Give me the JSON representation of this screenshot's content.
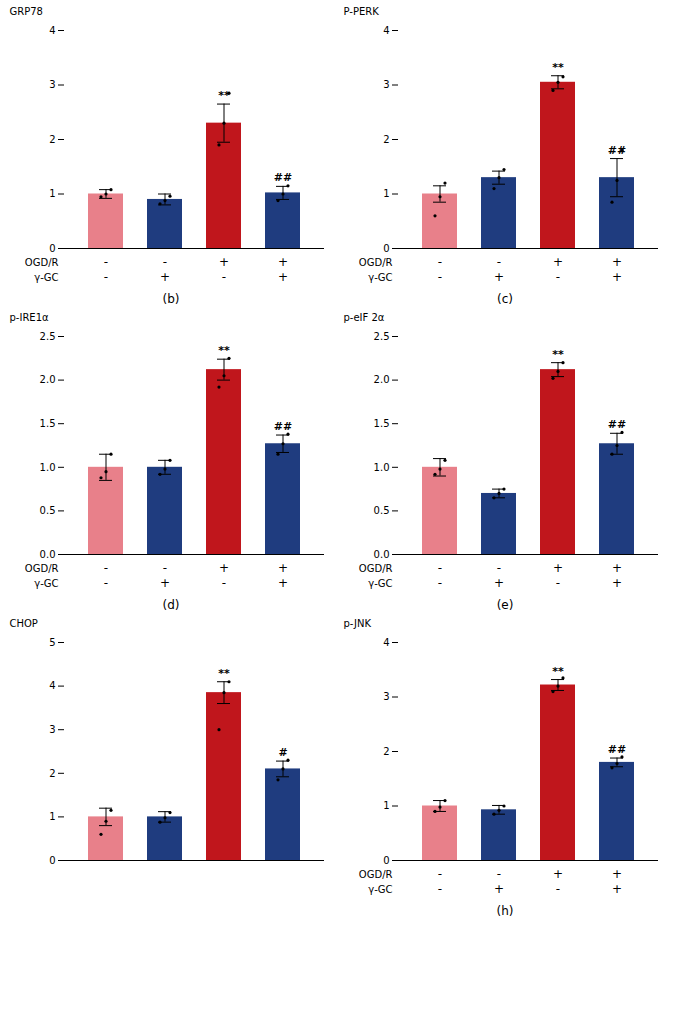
{
  "chart_data": [
    {
      "type": "bar",
      "title": "(b)",
      "ylabel": "GRP78",
      "categories": [
        null,
        null,
        null,
        null
      ],
      "category_rows": [
        {
          "label": "OGD/R",
          "values": [
            "-",
            "-",
            "+",
            "+"
          ]
        },
        {
          "label": "γ-GC",
          "values": [
            "-",
            "+",
            "-",
            "+"
          ]
        }
      ],
      "values": [
        1.0,
        0.9,
        2.3,
        1.02
      ],
      "errors": [
        0.08,
        0.1,
        0.35,
        0.12
      ],
      "points": [
        [
          0.95,
          1.0,
          1.08
        ],
        [
          0.82,
          0.88,
          0.96
        ],
        [
          1.9,
          2.3,
          2.85
        ],
        [
          0.88,
          1.0,
          1.15
        ]
      ],
      "significance_labels": [
        null,
        null,
        "**",
        "##"
      ],
      "colors": [
        "#E8808A",
        "#1F3C7F",
        "#C0161C",
        "#1F3C7F"
      ],
      "ylim": [
        0,
        4
      ],
      "yticks": [
        0,
        1,
        2,
        3,
        4
      ]
    },
    {
      "type": "bar",
      "title": "(c)",
      "ylabel": "P-PERK",
      "categories": [
        null,
        null,
        null,
        null
      ],
      "category_rows": [
        {
          "label": "OGD/R",
          "values": [
            "-",
            "-",
            "+",
            "+"
          ]
        },
        {
          "label": "γ-GC",
          "values": [
            "-",
            "+",
            "-",
            "+"
          ]
        }
      ],
      "values": [
        1.0,
        1.3,
        3.05,
        1.3
      ],
      "errors": [
        0.15,
        0.12,
        0.12,
        0.35
      ],
      "points": [
        [
          0.6,
          0.95,
          1.2
        ],
        [
          1.1,
          1.3,
          1.45
        ],
        [
          2.9,
          3.05,
          3.15
        ],
        [
          0.85,
          1.25,
          1.8
        ]
      ],
      "significance_labels": [
        null,
        null,
        "**",
        "##"
      ],
      "colors": [
        "#E8808A",
        "#1F3C7F",
        "#C0161C",
        "#1F3C7F"
      ],
      "ylim": [
        0,
        4
      ],
      "yticks": [
        0,
        1,
        2,
        3,
        4
      ]
    },
    {
      "type": "bar",
      "title": "(d)",
      "ylabel": "p-IRE1α",
      "categories": [
        null,
        null,
        null,
        null
      ],
      "category_rows": [
        {
          "label": "OGD/R",
          "values": [
            "-",
            "-",
            "+",
            "+"
          ]
        },
        {
          "label": "γ-GC",
          "values": [
            "-",
            "+",
            "-",
            "+"
          ]
        }
      ],
      "values": [
        1.0,
        1.0,
        2.12,
        1.27
      ],
      "errors": [
        0.15,
        0.08,
        0.12,
        0.1
      ],
      "points": [
        [
          0.88,
          0.95,
          1.15
        ],
        [
          0.92,
          0.98,
          1.08
        ],
        [
          1.92,
          2.05,
          2.25
        ],
        [
          1.15,
          1.27,
          1.38
        ]
      ],
      "significance_labels": [
        null,
        null,
        "**",
        "##"
      ],
      "colors": [
        "#E8808A",
        "#1F3C7F",
        "#C0161C",
        "#1F3C7F"
      ],
      "ylim": [
        0,
        2.5
      ],
      "yticks": [
        {
          "value": 0,
          "label": "0.0"
        },
        0.5,
        {
          "value": 1.0,
          "label": "1.0"
        },
        1.5,
        {
          "value": 2.0,
          "label": "2.0"
        },
        2.5
      ]
    },
    {
      "type": "bar",
      "title": "(e)",
      "ylabel": "p-eIF 2α",
      "categories": [
        null,
        null,
        null,
        null
      ],
      "category_rows": [
        {
          "label": "OGD/R",
          "values": [
            "-",
            "-",
            "+",
            "+"
          ]
        },
        {
          "label": "γ-GC",
          "values": [
            "-",
            "+",
            "-",
            "+"
          ]
        }
      ],
      "values": [
        1.0,
        0.7,
        2.12,
        1.27
      ],
      "errors": [
        0.1,
        0.05,
        0.08,
        0.12
      ],
      "points": [
        [
          0.92,
          0.98,
          1.08
        ],
        [
          0.65,
          0.7,
          0.75
        ],
        [
          2.02,
          2.1,
          2.2
        ],
        [
          1.15,
          1.25,
          1.4
        ]
      ],
      "significance_labels": [
        null,
        null,
        "**",
        "##"
      ],
      "colors": [
        "#E8808A",
        "#1F3C7F",
        "#C0161C",
        "#1F3C7F"
      ],
      "ylim": [
        0,
        2.5
      ],
      "yticks": [
        {
          "value": 0,
          "label": "0.0"
        },
        0.5,
        {
          "value": 1.0,
          "label": "1.0"
        },
        1.5,
        {
          "value": 2.0,
          "label": "2.0"
        },
        2.5
      ]
    },
    {
      "type": "bar",
      "ylabel": "CHOP",
      "categories": [
        null,
        null,
        null,
        null
      ],
      "values": [
        1.0,
        1.0,
        3.85,
        2.1
      ],
      "errors": [
        0.2,
        0.12,
        0.25,
        0.18
      ],
      "points": [
        [
          0.6,
          0.9,
          1.15
        ],
        [
          0.88,
          0.98,
          1.1
        ],
        [
          3.0,
          3.85,
          4.1
        ],
        [
          1.85,
          2.1,
          2.3
        ]
      ],
      "significance_labels": [
        null,
        null,
        "**",
        "#"
      ],
      "colors": [
        "#E8808A",
        "#1F3C7F",
        "#C0161C",
        "#1F3C7F"
      ],
      "ylim": [
        0,
        5
      ],
      "yticks": [
        0,
        1,
        2,
        3,
        4,
        5
      ]
    },
    {
      "type": "bar",
      "title": "(h)",
      "ylabel": "p-JNK",
      "categories": [
        null,
        null,
        null,
        null
      ],
      "category_rows": [
        {
          "label": "OGD/R",
          "values": [
            "-",
            "-",
            "+",
            "+"
          ]
        },
        {
          "label": "γ-GC",
          "values": [
            "-",
            "+",
            "-",
            "+"
          ]
        }
      ],
      "values": [
        1.0,
        0.93,
        3.22,
        1.8
      ],
      "errors": [
        0.1,
        0.08,
        0.1,
        0.08
      ],
      "points": [
        [
          0.9,
          0.98,
          1.1
        ],
        [
          0.85,
          0.92,
          1.0
        ],
        [
          3.1,
          3.2,
          3.35
        ],
        [
          1.7,
          1.78,
          1.9
        ]
      ],
      "significance_labels": [
        null,
        null,
        "**",
        "##"
      ],
      "colors": [
        "#E8808A",
        "#1F3C7F",
        "#C0161C",
        "#1F3C7F"
      ],
      "ylim": [
        0,
        4
      ],
      "yticks": [
        0,
        1,
        2,
        3,
        4
      ]
    }
  ]
}
